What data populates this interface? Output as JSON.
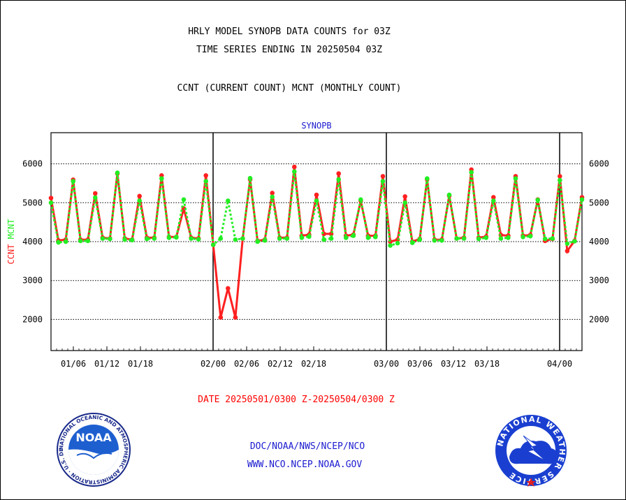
{
  "header": {
    "title_line1": "HRLY MODEL SYNOPB DATA COUNTS for 03Z",
    "title_line2": "TIME SERIES ENDING IN 20250504 03Z",
    "subtitle": "CCNT (CURRENT COUNT) MCNT (MONTHLY COUNT)"
  },
  "footer": {
    "date_range": "DATE 20250501/0300 Z-20250504/0300 Z",
    "org": "DOC/NOAA/NWS/NCEP/NCO",
    "url": "WWW.NCO.NCEP.NOAA.GOV"
  },
  "logos": {
    "noaa": "NOAA",
    "noaa_ring": "NATIONAL OCEANIC AND ATMOSPHERIC ADMINISTRATION · U.S. DEPARTMENT OF COMMERCE ·",
    "nws_ring": "NATIONAL WEATHER SERVICE"
  },
  "colors": {
    "ccnt": "#ff2020",
    "mcnt": "#22ee22",
    "plot_title": "#1a1ad0",
    "grid": "#000000"
  },
  "chart_data": {
    "type": "line",
    "title": "SYNOPB",
    "ylabel_left": [
      "CCNT",
      "MCNT"
    ],
    "ylim": [
      1200,
      6800
    ],
    "yticks": [
      2000,
      3000,
      4000,
      5000,
      6000
    ],
    "grid": true,
    "x_start": "01/02",
    "x_end": "04/04",
    "xtick_labels": [
      "01/06",
      "01/12",
      "01/18",
      "02/00",
      "02/06",
      "02/12",
      "02/18",
      "03/00",
      "03/06",
      "03/12",
      "03/18",
      "04/00"
    ],
    "month_boundaries": [
      "02/00",
      "03/00",
      "04/00"
    ],
    "series": [
      {
        "name": "CCNT",
        "style": "solid",
        "values": [
          5120,
          4030,
          4050,
          5590,
          4050,
          4050,
          5240,
          4100,
          4080,
          5750,
          4080,
          4050,
          5170,
          4100,
          4100,
          5700,
          4120,
          4120,
          4850,
          4100,
          4080,
          5700,
          3920,
          2050,
          2800,
          2050,
          4080,
          5600,
          4020,
          4050,
          5250,
          4100,
          4100,
          5920,
          4150,
          4180,
          5200,
          4200,
          4200,
          5750,
          4150,
          4180,
          5050,
          4150,
          4150,
          5680,
          4000,
          4050,
          5160,
          4000,
          4070,
          5600,
          4050,
          4050,
          5180,
          4080,
          4100,
          5850,
          4100,
          4130,
          5140,
          4170,
          4150,
          5680,
          4150,
          4170,
          5080,
          4020,
          4070,
          5680,
          3760,
          4020,
          5140
        ]
      },
      {
        "name": "MCNT",
        "style": "dotted",
        "values": [
          5000,
          3980,
          4000,
          5550,
          4020,
          4020,
          5130,
          4080,
          4070,
          5770,
          4050,
          4040,
          5050,
          4070,
          4080,
          5620,
          4100,
          4110,
          5080,
          4080,
          4060,
          5550,
          3920,
          4080,
          5050,
          4050,
          4080,
          5630,
          4000,
          4030,
          5150,
          4080,
          4080,
          5800,
          4100,
          4130,
          5050,
          4050,
          4080,
          5600,
          4100,
          4150,
          5080,
          4100,
          4120,
          5550,
          3900,
          3960,
          5000,
          3970,
          4050,
          5620,
          4030,
          4030,
          5200,
          4080,
          4080,
          5780,
          4070,
          4100,
          5050,
          4080,
          4100,
          5620,
          4120,
          4140,
          5070,
          4070,
          4080,
          5580,
          3950,
          4010,
          5080
        ]
      }
    ]
  }
}
